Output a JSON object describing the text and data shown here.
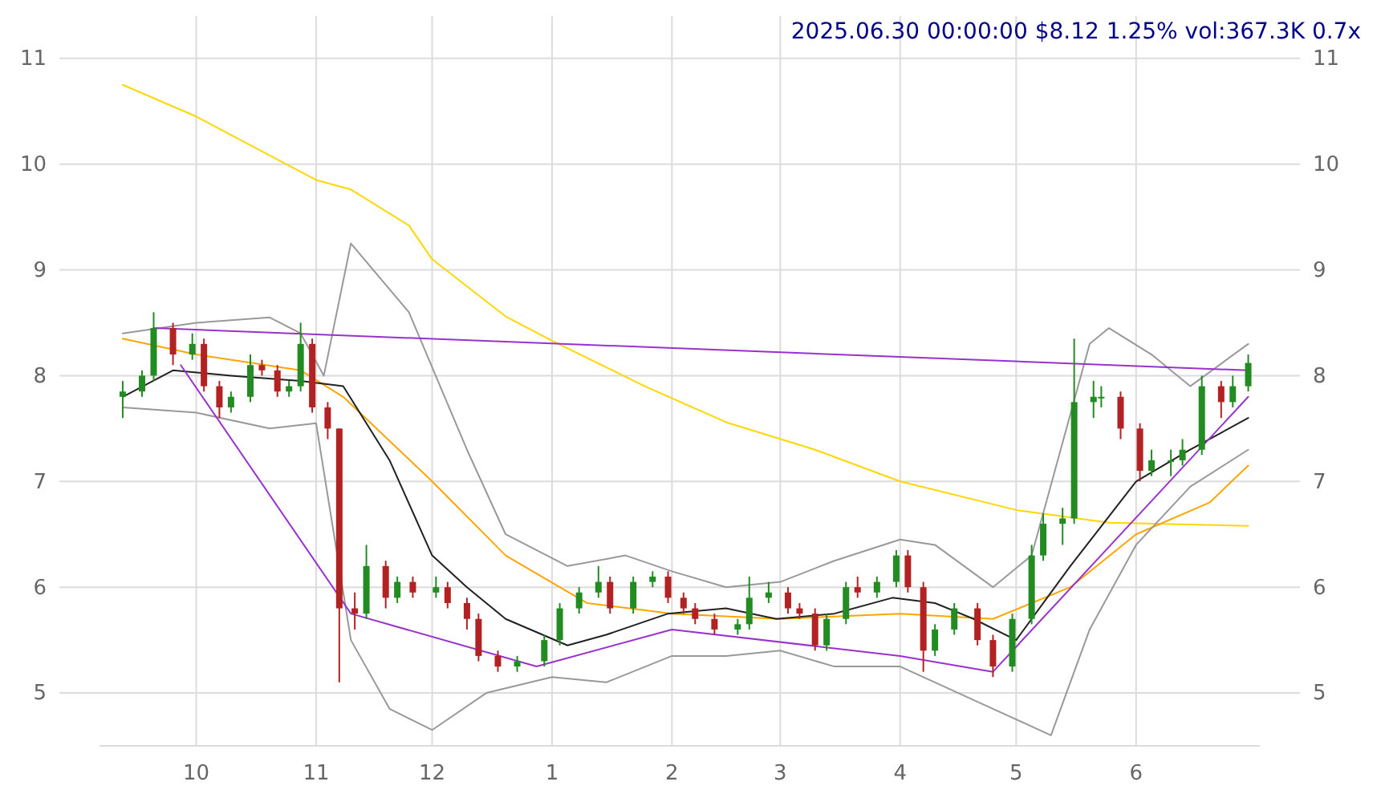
{
  "chart_data": {
    "type": "candlestick",
    "title": "2025.06.30 00:00:00 $8.12 1.25% vol:367.3K 0.7x",
    "grid": true,
    "xlim": [
      "2024-09-06",
      "2025-07-03"
    ],
    "xticks": [
      {
        "value": "2024-10-01",
        "label": "10"
      },
      {
        "value": "2024-11-01",
        "label": "11"
      },
      {
        "value": "2024-12-01",
        "label": "12"
      },
      {
        "value": "2025-01-01",
        "label": "1"
      },
      {
        "value": "2025-02-01",
        "label": "2"
      },
      {
        "value": "2025-03-01",
        "label": "3"
      },
      {
        "value": "2025-04-01",
        "label": "4"
      },
      {
        "value": "2025-05-01",
        "label": "5"
      },
      {
        "value": "2025-06-01",
        "label": "6"
      }
    ],
    "ylim": [
      4.5,
      11.4
    ],
    "yticks": [
      5,
      6,
      7,
      8,
      9,
      10,
      11
    ],
    "y2lim": [
      4.5,
      11.4
    ],
    "y2ticks": [
      5,
      6,
      7,
      8,
      9,
      10,
      11
    ],
    "x": [
      "2024-09-12",
      "2024-09-17",
      "2024-09-20",
      "2024-09-25",
      "2024-09-30",
      "2024-10-03",
      "2024-10-07",
      "2024-10-10",
      "2024-10-15",
      "2024-10-18",
      "2024-10-22",
      "2024-10-25",
      "2024-10-28",
      "2024-10-31",
      "2024-11-04",
      "2024-11-07",
      "2024-11-11",
      "2024-11-14",
      "2024-11-19",
      "2024-11-22",
      "2024-11-26",
      "2024-12-02",
      "2024-12-05",
      "2024-12-10",
      "2024-12-13",
      "2024-12-18",
      "2024-12-23",
      "2024-12-30",
      "2025-01-03",
      "2025-01-08",
      "2025-01-13",
      "2025-01-16",
      "2025-01-22",
      "2025-01-27",
      "2025-01-31",
      "2025-02-04",
      "2025-02-07",
      "2025-02-12",
      "2025-02-18",
      "2025-02-21",
      "2025-02-26",
      "2025-03-03",
      "2025-03-06",
      "2025-03-10",
      "2025-03-13",
      "2025-03-18",
      "2025-03-21",
      "2025-03-26",
      "2025-03-31",
      "2025-04-03",
      "2025-04-07",
      "2025-04-10",
      "2025-04-15",
      "2025-04-21",
      "2025-04-25",
      "2025-04-30",
      "2025-05-05",
      "2025-05-08",
      "2025-05-13",
      "2025-05-16",
      "2025-05-21",
      "2025-05-23",
      "2025-05-28",
      "2025-06-02",
      "2025-06-05",
      "2025-06-10",
      "2025-06-13",
      "2025-06-18",
      "2025-06-23",
      "2025-06-26",
      "2025-06-30"
    ],
    "ohlc": [
      [
        7.8,
        7.95,
        7.6,
        7.85
      ],
      [
        7.85,
        8.05,
        7.8,
        8.0
      ],
      [
        8.0,
        8.6,
        7.95,
        8.45
      ],
      [
        8.45,
        8.5,
        8.1,
        8.2
      ],
      [
        8.2,
        8.4,
        8.15,
        8.3
      ],
      [
        8.3,
        8.35,
        7.85,
        7.9
      ],
      [
        7.9,
        7.95,
        7.6,
        7.7
      ],
      [
        7.7,
        7.85,
        7.65,
        7.8
      ],
      [
        7.8,
        8.2,
        7.75,
        8.1
      ],
      [
        8.1,
        8.15,
        8.0,
        8.05
      ],
      [
        8.05,
        8.1,
        7.8,
        7.85
      ],
      [
        7.85,
        7.95,
        7.8,
        7.9
      ],
      [
        7.9,
        8.5,
        7.85,
        8.3
      ],
      [
        8.3,
        8.35,
        7.65,
        7.7
      ],
      [
        7.7,
        7.75,
        7.4,
        7.5
      ],
      [
        7.5,
        7.5,
        5.1,
        5.8
      ],
      [
        5.8,
        5.95,
        5.6,
        5.75
      ],
      [
        5.75,
        6.4,
        5.7,
        6.2
      ],
      [
        6.2,
        6.25,
        5.8,
        5.9
      ],
      [
        5.9,
        6.1,
        5.85,
        6.05
      ],
      [
        6.05,
        6.1,
        5.9,
        5.95
      ],
      [
        5.95,
        6.1,
        5.9,
        6.0
      ],
      [
        6.0,
        6.05,
        5.8,
        5.85
      ],
      [
        5.85,
        5.9,
        5.6,
        5.7
      ],
      [
        5.7,
        5.75,
        5.3,
        5.35
      ],
      [
        5.35,
        5.4,
        5.2,
        5.25
      ],
      [
        5.25,
        5.35,
        5.2,
        5.3
      ],
      [
        5.3,
        5.55,
        5.25,
        5.5
      ],
      [
        5.5,
        5.85,
        5.45,
        5.8
      ],
      [
        5.8,
        6.0,
        5.75,
        5.95
      ],
      [
        5.95,
        6.2,
        5.9,
        6.05
      ],
      [
        6.05,
        6.1,
        5.75,
        5.8
      ],
      [
        5.8,
        6.1,
        5.75,
        6.05
      ],
      [
        6.05,
        6.15,
        6.0,
        6.1
      ],
      [
        6.1,
        6.15,
        5.85,
        5.9
      ],
      [
        5.9,
        5.95,
        5.75,
        5.8
      ],
      [
        5.8,
        5.85,
        5.65,
        5.7
      ],
      [
        5.7,
        5.75,
        5.55,
        5.6
      ],
      [
        5.6,
        5.7,
        5.55,
        5.65
      ],
      [
        5.65,
        6.1,
        5.6,
        5.9
      ],
      [
        5.9,
        6.05,
        5.85,
        5.95
      ],
      [
        5.95,
        6.0,
        5.75,
        5.8
      ],
      [
        5.8,
        5.85,
        5.7,
        5.75
      ],
      [
        5.75,
        5.8,
        5.4,
        5.45
      ],
      [
        5.45,
        5.75,
        5.4,
        5.7
      ],
      [
        5.7,
        6.05,
        5.65,
        6.0
      ],
      [
        6.0,
        6.1,
        5.9,
        5.95
      ],
      [
        5.95,
        6.1,
        5.9,
        6.05
      ],
      [
        6.05,
        6.35,
        6.0,
        6.3
      ],
      [
        6.3,
        6.35,
        5.95,
        6.0
      ],
      [
        6.0,
        6.05,
        5.2,
        5.4
      ],
      [
        5.4,
        5.65,
        5.35,
        5.6
      ],
      [
        5.6,
        5.85,
        5.55,
        5.8
      ],
      [
        5.8,
        5.85,
        5.45,
        5.5
      ],
      [
        5.5,
        5.55,
        5.15,
        5.25
      ],
      [
        5.25,
        5.75,
        5.2,
        5.7
      ],
      [
        5.7,
        6.4,
        5.65,
        6.3
      ],
      [
        6.3,
        6.7,
        6.25,
        6.6
      ],
      [
        6.6,
        6.75,
        6.4,
        6.65
      ],
      [
        6.65,
        8.35,
        6.6,
        7.75
      ],
      [
        7.75,
        7.95,
        7.6,
        7.8
      ],
      [
        7.8,
        7.9,
        7.7,
        7.8
      ],
      [
        7.8,
        7.85,
        7.4,
        7.5
      ],
      [
        7.5,
        7.55,
        7.0,
        7.1
      ],
      [
        7.1,
        7.3,
        7.05,
        7.2
      ],
      [
        7.2,
        7.3,
        7.05,
        7.2
      ],
      [
        7.2,
        7.4,
        7.15,
        7.3
      ],
      [
        7.3,
        8.0,
        7.25,
        7.9
      ],
      [
        7.9,
        7.95,
        7.6,
        7.75
      ],
      [
        7.75,
        8.0,
        7.7,
        7.9
      ],
      [
        7.9,
        8.2,
        7.85,
        8.12
      ]
    ],
    "series": [
      {
        "type": "line",
        "color": "#ffd700",
        "x": [
          "2024-09-12",
          "2024-10-01",
          "2024-11-01",
          "2024-11-10",
          "2024-11-25",
          "2024-12-01",
          "2024-12-20",
          "2025-01-01",
          "2025-01-25",
          "2025-02-15",
          "2025-03-10",
          "2025-04-01",
          "2025-05-01",
          "2025-05-25",
          "2025-06-30"
        ],
        "values": [
          10.75,
          10.45,
          9.85,
          9.76,
          9.42,
          9.1,
          8.56,
          8.33,
          7.9,
          7.56,
          7.3,
          7.0,
          6.73,
          6.61,
          6.58
        ]
      },
      {
        "type": "line",
        "color": "#ffa500",
        "x": [
          "2024-09-12",
          "2024-10-01",
          "2024-10-28",
          "2024-11-08",
          "2024-12-01",
          "2024-12-20",
          "2025-01-10",
          "2025-02-01",
          "2025-03-01",
          "2025-04-01",
          "2025-04-25",
          "2025-05-15",
          "2025-06-01",
          "2025-06-20",
          "2025-06-30"
        ],
        "values": [
          8.35,
          8.2,
          8.05,
          7.8,
          7.0,
          6.3,
          5.85,
          5.75,
          5.7,
          5.75,
          5.7,
          6.0,
          6.5,
          6.8,
          7.15
        ]
      },
      {
        "type": "line",
        "color": "#222222",
        "x": [
          "2024-09-12",
          "2024-09-25",
          "2024-10-10",
          "2024-10-28",
          "2024-11-08",
          "2024-11-20",
          "2024-12-01",
          "2024-12-10",
          "2024-12-20",
          "2025-01-05",
          "2025-01-15",
          "2025-01-31",
          "2025-02-15",
          "2025-02-28",
          "2025-03-15",
          "2025-03-30",
          "2025-04-10",
          "2025-04-20",
          "2025-05-01",
          "2025-05-15",
          "2025-06-01",
          "2025-06-15",
          "2025-06-30"
        ],
        "values": [
          7.8,
          8.05,
          8.0,
          7.95,
          7.9,
          7.2,
          6.3,
          6.0,
          5.7,
          5.45,
          5.55,
          5.75,
          5.8,
          5.7,
          5.75,
          5.9,
          5.85,
          5.7,
          5.5,
          6.2,
          7.0,
          7.3,
          7.6
        ]
      },
      {
        "type": "line",
        "color": "#999999",
        "x": [
          "2024-09-12",
          "2024-10-01",
          "2024-10-20",
          "2024-10-28",
          "2024-11-03",
          "2024-11-10",
          "2024-11-25",
          "2024-12-10",
          "2024-12-20",
          "2025-01-05",
          "2025-01-20",
          "2025-02-01",
          "2025-02-15",
          "2025-03-01",
          "2025-03-15",
          "2025-04-01",
          "2025-04-10",
          "2025-04-25",
          "2025-05-05",
          "2025-05-20",
          "2025-05-25",
          "2025-06-05",
          "2025-06-15",
          "2025-06-30"
        ],
        "values": [
          8.4,
          8.5,
          8.55,
          8.4,
          8.0,
          9.25,
          8.6,
          7.3,
          6.5,
          6.2,
          6.3,
          6.15,
          6.0,
          6.05,
          6.25,
          6.45,
          6.4,
          6.0,
          6.3,
          8.3,
          8.45,
          8.2,
          7.9,
          8.3
        ]
      },
      {
        "type": "line",
        "color": "#999999",
        "x": [
          "2024-09-12",
          "2024-10-01",
          "2024-10-20",
          "2024-11-01",
          "2024-11-10",
          "2024-11-20",
          "2024-12-01",
          "2024-12-15",
          "2025-01-01",
          "2025-01-15",
          "2025-02-01",
          "2025-02-15",
          "2025-03-01",
          "2025-03-15",
          "2025-04-01",
          "2025-04-10",
          "2025-04-25",
          "2025-05-10",
          "2025-05-20",
          "2025-06-01",
          "2025-06-15",
          "2025-06-30"
        ],
        "values": [
          7.7,
          7.65,
          7.5,
          7.55,
          5.5,
          4.85,
          4.65,
          5.0,
          5.15,
          5.1,
          5.35,
          5.35,
          5.4,
          5.25,
          5.25,
          5.1,
          4.85,
          4.6,
          5.6,
          6.4,
          6.95,
          7.3
        ]
      },
      {
        "type": "line",
        "color": "#9932cc",
        "x": [
          "2024-09-20",
          "2025-06-30"
        ],
        "values": [
          8.45,
          8.05
        ]
      },
      {
        "type": "line",
        "color": "#9932cc",
        "x": [
          "2024-09-27",
          "2024-11-10",
          "2024-12-28",
          "2025-02-01",
          "2025-04-01",
          "2025-04-25",
          "2025-06-30"
        ],
        "values": [
          8.1,
          5.75,
          5.25,
          5.6,
          5.35,
          5.2,
          7.8
        ]
      }
    ]
  }
}
